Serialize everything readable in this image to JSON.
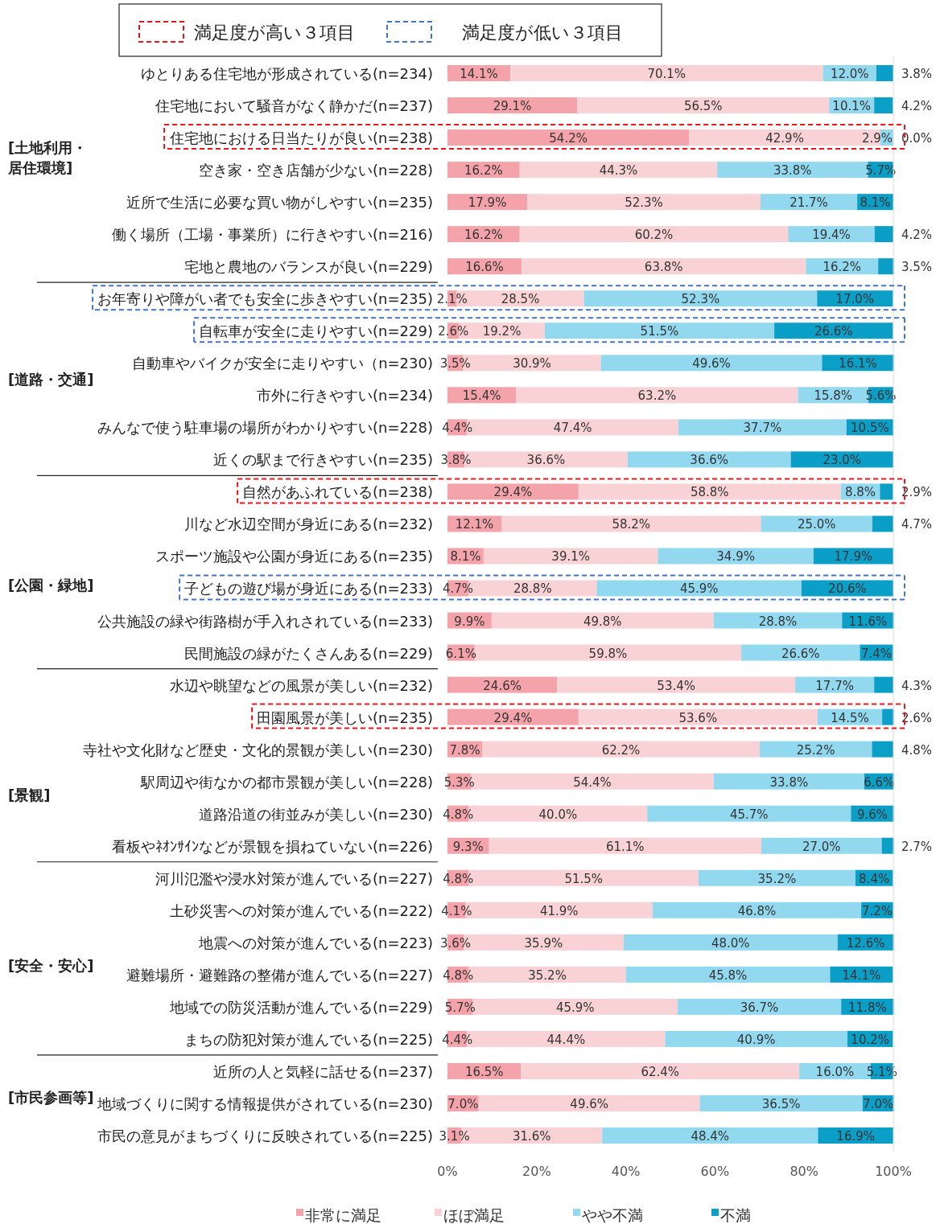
{
  "chart_data": {
    "type": "bar",
    "orientation": "horizontal",
    "stacked": true,
    "categories": [
      "ゆとりある住宅地が形成されている(n=234)",
      "住宅地において騒音がなく静かだ(n=237)",
      "住宅地における日当たりが良い(n=238)",
      "空き家・空き店舗が少ない(n=228)",
      "近所で生活に必要な買い物がしやすい(n=235)",
      "働く場所（工場・事業所）に行きやすい(n=216)",
      "宅地と農地のバランスが良い(n=229)",
      "お年寄りや障がい者でも安全に歩きやすい(n=235)",
      "自転車が安全に走りやすい(n=229)",
      "自動車やバイクが安全に走りやすい（n=230)",
      "市外に行きやすい(n=234)",
      "みんなで使う駐車場の場所がわかりやすい(n=228)",
      "近くの駅まで行きやすい(n=235)",
      "自然があふれている(n=238)",
      "川など水辺空間が身近にある(n=232)",
      "スポーツ施設や公園が身近にある(n=235)",
      "子どもの遊び場が身近にある(n=233)",
      "公共施設の緑や街路樹が手入れされている(n=233)",
      "民間施設の緑がたくさんある(n=229)",
      "水辺や眺望などの風景が美しい(n=232)",
      "田園風景が美しい(n=235)",
      "寺社や文化財など歴史・文化的景観が美しい(n=230)",
      "駅周辺や街なかの都市景観が美しい(n=228)",
      "道路沿道の街並みが美しい(n=230)",
      "看板やﾈｵﾝｻｲﾝなどが景観を損ねていない(n=226)",
      "河川氾濫や浸水対策が進んでいる(n=227)",
      "土砂災害への対策が進んでいる(n=222)",
      "地震への対策が進んでいる(n=223)",
      "避難場所・避難路の整備が進んでいる(n=227)",
      "地域での防災活動が進んでいる(n=229)",
      "まちの防犯対策が進んでいる(n=225)",
      "近所の人と気軽に話せる(n=237)",
      "地域づくりに関する情報提供がされている(n=230)",
      "市民の意見がまちづくりに反映されている(n=225)"
    ],
    "series": [
      {
        "name": "非常に満足",
        "color": "#f4a3aa",
        "values": [
          14.1,
          29.1,
          54.2,
          16.2,
          17.9,
          16.2,
          16.6,
          2.1,
          2.6,
          3.5,
          15.4,
          4.4,
          3.8,
          29.4,
          12.1,
          8.1,
          4.7,
          9.9,
          6.1,
          24.6,
          29.4,
          7.8,
          5.3,
          4.8,
          9.3,
          4.8,
          4.1,
          3.6,
          4.8,
          5.7,
          4.4,
          16.5,
          7.0,
          3.1
        ],
        "value_labels": [
          "14.1%",
          "29.1%",
          "54.2%",
          "16.2%",
          "17.9%",
          "16.2%",
          "16.6%",
          "2.1%",
          "2.6%",
          "3.5%",
          "15.4%",
          "4.4%",
          "3.8%",
          "29.4%",
          "12.1%",
          "8.1%",
          "4.7%",
          "9.9%",
          "6.1%",
          "24.6%",
          "29.4%",
          "7.8%",
          "5.3%",
          "4.8%",
          "9.3%",
          "4.8%",
          "4.1%",
          "3.6%",
          "4.8%",
          "5.7%",
          "4.4%",
          "16.5%",
          "7.0%",
          "3.1%"
        ]
      },
      {
        "name": "ほぼ満足",
        "color": "#f9d2d5",
        "values": [
          70.1,
          56.5,
          42.9,
          44.3,
          52.3,
          60.2,
          63.8,
          28.5,
          19.2,
          30.9,
          63.2,
          47.4,
          36.6,
          58.8,
          58.2,
          39.1,
          28.8,
          49.8,
          59.8,
          53.4,
          53.6,
          62.2,
          54.4,
          40.0,
          61.1,
          51.5,
          41.9,
          35.9,
          35.2,
          45.9,
          44.4,
          62.4,
          49.6,
          31.6
        ],
        "value_labels": [
          "70.1%",
          "56.5%",
          "42.9%",
          "44.3%",
          "52.3%",
          "60.2%",
          "63.8%",
          "28.5%",
          "19.2%",
          "30.9%",
          "63.2%",
          "47.4%",
          "36.6%",
          "58.8%",
          "58.2%",
          "39.1%",
          "28.8%",
          "49.8%",
          "59.8%",
          "53.4%",
          "53.6%",
          "62.2%",
          "54.4%",
          "40.0%",
          "61.1%",
          "51.5%",
          "41.9%",
          "35.9%",
          "35.2%",
          "45.9%",
          "44.4%",
          "62.4%",
          "49.6%",
          "31.6%"
        ]
      },
      {
        "name": "やや不満",
        "color": "#92d9f0",
        "values": [
          12.0,
          10.1,
          2.9,
          33.8,
          21.7,
          19.4,
          16.2,
          52.3,
          51.5,
          49.6,
          15.8,
          37.7,
          36.6,
          8.8,
          25.0,
          34.9,
          45.9,
          28.8,
          26.6,
          17.7,
          14.5,
          25.2,
          33.8,
          45.7,
          27.0,
          35.2,
          46.8,
          48.0,
          45.8,
          36.7,
          40.9,
          16.0,
          36.5,
          48.4
        ],
        "value_labels": [
          "12.0%",
          "10.1%",
          "2.9%",
          "33.8%",
          "21.7%",
          "19.4%",
          "16.2%",
          "52.3%",
          "51.5%",
          "49.6%",
          "15.8%",
          "37.7%",
          "36.6%",
          "8.8%",
          "25.0%",
          "34.9%",
          "45.9%",
          "28.8%",
          "26.6%",
          "17.7%",
          "14.5%",
          "25.2%",
          "33.8%",
          "45.7%",
          "27.0%",
          "35.2%",
          "46.8%",
          "48.0%",
          "45.8%",
          "36.7%",
          "40.9%",
          "16.0%",
          "36.5%",
          "48.4%"
        ]
      },
      {
        "name": "不満",
        "color": "#0b9fc8",
        "values": [
          3.8,
          4.2,
          0.0,
          5.7,
          8.1,
          4.2,
          3.5,
          17.0,
          26.6,
          16.1,
          5.6,
          10.5,
          23.0,
          2.9,
          4.7,
          17.9,
          20.6,
          11.6,
          7.4,
          4.3,
          2.6,
          4.8,
          6.6,
          9.6,
          2.7,
          8.4,
          7.2,
          12.6,
          14.1,
          11.8,
          10.2,
          5.1,
          7.0,
          16.9
        ],
        "value_labels": [
          "3.8%",
          "4.2%",
          "0.0%",
          "5.7%",
          "8.1%",
          "4.2%",
          "3.5%",
          "17.0%",
          "26.6%",
          "16.1%",
          "5.6%",
          "10.5%",
          "23.0%",
          "2.9%",
          "4.7%",
          "17.9%",
          "20.6%",
          "11.6%",
          "7.4%",
          "4.3%",
          "2.6%",
          "4.8%",
          "6.6%",
          "9.6%",
          "2.7%",
          "8.4%",
          "7.2%",
          "12.6%",
          "14.1%",
          "11.8%",
          "10.2%",
          "5.1%",
          "7.0%",
          "16.9%"
        ]
      }
    ],
    "xlim": [
      0,
      100
    ],
    "xticks": [
      {
        "value": 0,
        "label": "0%"
      },
      {
        "value": 20,
        "label": "20%"
      },
      {
        "value": 40,
        "label": "40%"
      },
      {
        "value": 60,
        "label": "60%"
      },
      {
        "value": 80,
        "label": "80%"
      },
      {
        "value": 100,
        "label": "100%"
      }
    ],
    "legend": "bottom",
    "annotations": [
      "満足度が高い３項目",
      "満足度が低い３項目",
      "[土地利用・居住環境]",
      "[道路・交通]",
      "[公園・緑地]",
      "[景観]",
      "[安全・安心]",
      "[市民参画等]"
    ]
  }
}
